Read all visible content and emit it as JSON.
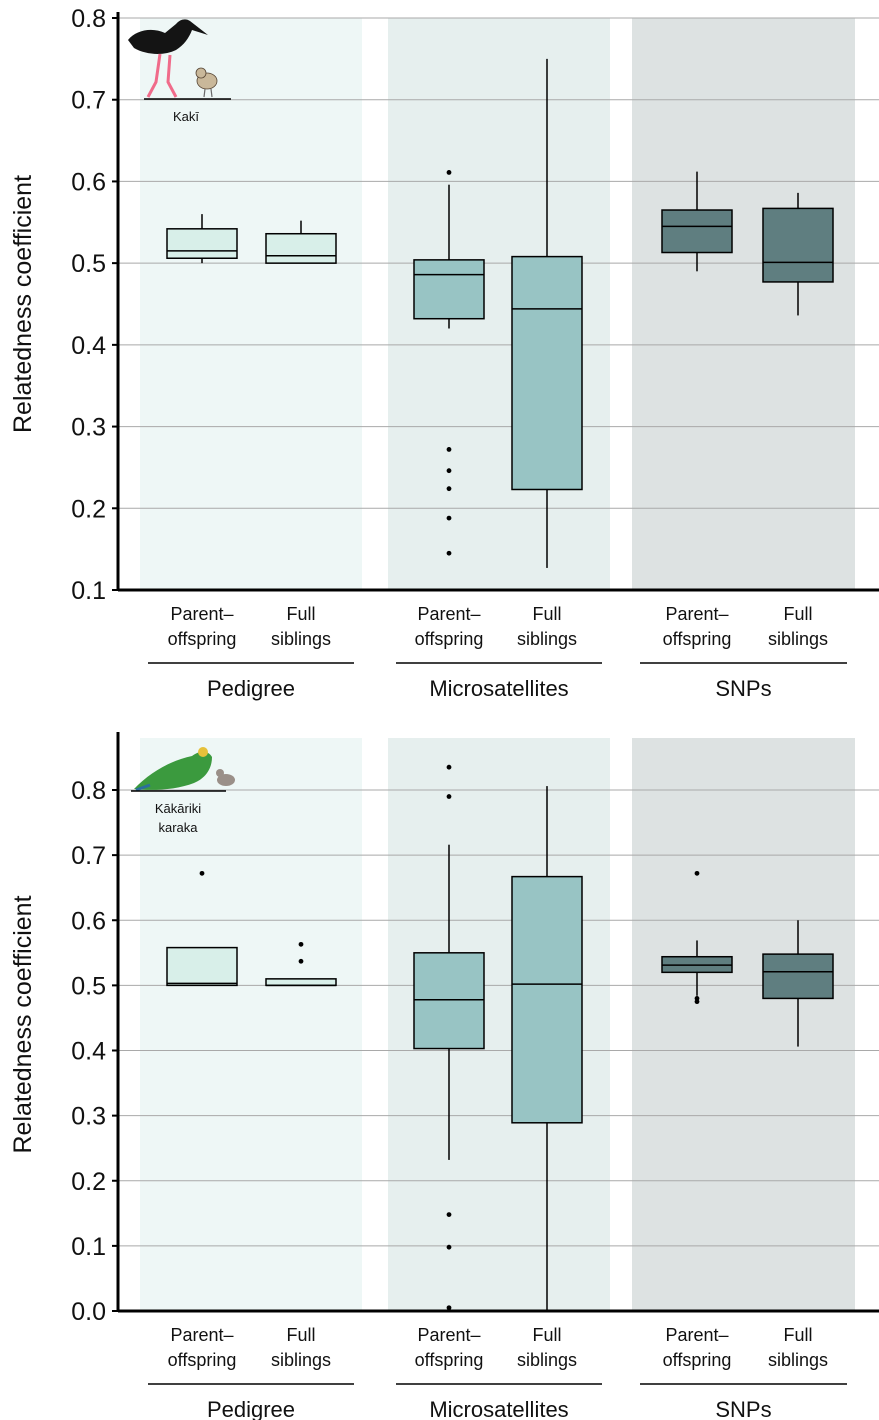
{
  "colors": {
    "bg_pedigree": "#eef7f6",
    "bg_micro": "#e6efee",
    "bg_snps": "#dde2e2",
    "box_pedigree": "#d8efe9",
    "box_micro": "#98c4c4",
    "box_snps": "#5f7e80",
    "grid": "#a9a9a9"
  },
  "chart_data": [
    {
      "type": "boxplot",
      "species_label": [
        "Kakī"
      ],
      "icon": "kaki-stilt-bird-icon",
      "ylabel": "Relatedness coefficient",
      "ylim": [
        0.1,
        0.8
      ],
      "yticks": [
        "0.1",
        "0.2",
        "0.3",
        "0.4",
        "0.5",
        "0.6",
        "0.7",
        "0.8"
      ],
      "grid": true,
      "groups": [
        {
          "label": "Pedigree",
          "categories": [
            [
              "Parent–",
              "offspring"
            ],
            [
              "Full",
              "siblings"
            ]
          ]
        },
        {
          "label": "Microsatellites",
          "categories": [
            [
              "Parent–",
              "offspring"
            ],
            [
              "Full",
              "siblings"
            ]
          ]
        },
        {
          "label": "SNPs",
          "categories": [
            [
              "Parent–",
              "offspring"
            ],
            [
              "Full",
              "siblings"
            ]
          ]
        }
      ],
      "boxes": [
        {
          "group": "Pedigree",
          "category": "Parent–offspring",
          "whisker_low": 0.5,
          "q1": 0.506,
          "median": 0.515,
          "q3": 0.542,
          "whisker_high": 0.56,
          "outliers": []
        },
        {
          "group": "Pedigree",
          "category": "Full siblings",
          "whisker_low": 0.5,
          "q1": 0.5,
          "median": 0.509,
          "q3": 0.536,
          "whisker_high": 0.552,
          "outliers": []
        },
        {
          "group": "Microsatellites",
          "category": "Parent–offspring",
          "whisker_low": 0.42,
          "q1": 0.432,
          "median": 0.486,
          "q3": 0.504,
          "whisker_high": 0.596,
          "outliers": [
            0.611,
            0.272,
            0.246,
            0.224,
            0.188,
            0.145
          ]
        },
        {
          "group": "Microsatellites",
          "category": "Full siblings",
          "whisker_low": 0.127,
          "q1": 0.223,
          "median": 0.444,
          "q3": 0.508,
          "whisker_high": 0.75,
          "outliers": []
        },
        {
          "group": "SNPs",
          "category": "Parent–offspring",
          "whisker_low": 0.49,
          "q1": 0.513,
          "median": 0.545,
          "q3": 0.565,
          "whisker_high": 0.612,
          "outliers": []
        },
        {
          "group": "SNPs",
          "category": "Full siblings",
          "whisker_low": 0.436,
          "q1": 0.477,
          "median": 0.501,
          "q3": 0.567,
          "whisker_high": 0.586,
          "outliers": []
        }
      ]
    },
    {
      "type": "boxplot",
      "species_label": [
        "Kākāriki",
        "karaka"
      ],
      "icon": "kakariki-parakeet-bird-icon",
      "ylabel": "Relatedness coefficient",
      "ylim": [
        0.0,
        0.8
      ],
      "yticks": [
        "0.0",
        "0.1",
        "0.2",
        "0.3",
        "0.4",
        "0.5",
        "0.6",
        "0.7",
        "0.8"
      ],
      "grid": true,
      "groups": [
        {
          "label": "Pedigree",
          "categories": [
            [
              "Parent–",
              "offspring"
            ],
            [
              "Full",
              "siblings"
            ]
          ]
        },
        {
          "label": "Microsatellites",
          "categories": [
            [
              "Parent–",
              "offspring"
            ],
            [
              "Full",
              "siblings"
            ]
          ]
        },
        {
          "label": "SNPs",
          "categories": [
            [
              "Parent–",
              "offspring"
            ],
            [
              "Full",
              "siblings"
            ]
          ]
        }
      ],
      "boxes": [
        {
          "group": "Pedigree",
          "category": "Parent–offspring",
          "whisker_low": 0.5,
          "q1": 0.5,
          "median": 0.503,
          "q3": 0.558,
          "whisker_high": 0.558,
          "outliers": [
            0.672
          ]
        },
        {
          "group": "Pedigree",
          "category": "Full siblings",
          "whisker_low": 0.5,
          "q1": 0.5,
          "median": 0.5,
          "q3": 0.51,
          "whisker_high": 0.51,
          "outliers": [
            0.563,
            0.537
          ]
        },
        {
          "group": "Microsatellites",
          "category": "Parent–offspring",
          "whisker_low": 0.232,
          "q1": 0.403,
          "median": 0.478,
          "q3": 0.55,
          "whisker_high": 0.716,
          "outliers": [
            0.835,
            0.79,
            0.148,
            0.098,
            0.005
          ]
        },
        {
          "group": "Microsatellites",
          "category": "Full siblings",
          "whisker_low": 0.0,
          "q1": 0.289,
          "median": 0.502,
          "q3": 0.667,
          "whisker_high": 0.806,
          "outliers": []
        },
        {
          "group": "SNPs",
          "category": "Parent–offspring",
          "whisker_low": 0.484,
          "q1": 0.52,
          "median": 0.531,
          "q3": 0.544,
          "whisker_high": 0.569,
          "outliers": [
            0.672,
            0.48,
            0.475
          ]
        },
        {
          "group": "SNPs",
          "category": "Full siblings",
          "whisker_low": 0.406,
          "q1": 0.48,
          "median": 0.521,
          "q3": 0.548,
          "whisker_high": 0.6,
          "outliers": []
        }
      ]
    }
  ]
}
